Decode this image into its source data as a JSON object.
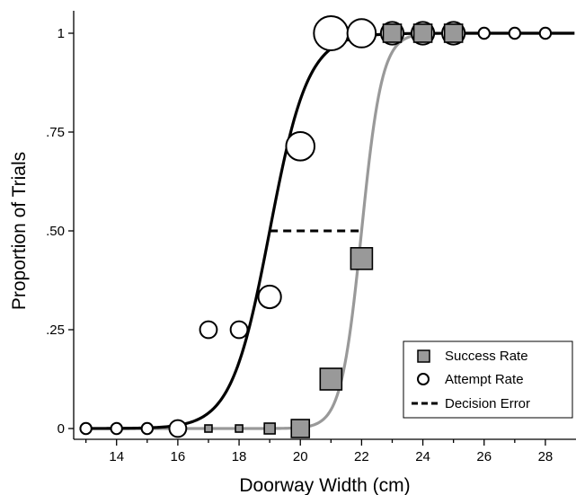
{
  "chart_data": {
    "type": "scatter",
    "xlabel": "Doorway Width (cm)",
    "ylabel": "Proportion of Trials",
    "xlim": [
      12.6,
      29
    ],
    "ylim": [
      0,
      1
    ],
    "x_ticks": [
      14,
      16,
      18,
      20,
      22,
      24,
      26,
      28
    ],
    "x_tick_labels": [
      "14",
      "16",
      "18",
      "20",
      "22",
      "24",
      "26",
      "28"
    ],
    "y_ticks": [
      0,
      0.25,
      0.5,
      0.75,
      1
    ],
    "y_tick_labels": [
      "0",
      ".25",
      ".50",
      ".75",
      "1"
    ],
    "grid": false,
    "legend_position": "bottom-right",
    "series": [
      {
        "name": "Success Rate",
        "marker": "square",
        "fill": "#999999",
        "stroke": "#000000",
        "points": [
          {
            "x": 17,
            "y": 0,
            "n": 1
          },
          {
            "x": 18,
            "y": 0,
            "n": 1
          },
          {
            "x": 19,
            "y": 0,
            "n": 2
          },
          {
            "x": 20,
            "y": 0,
            "n": 4
          },
          {
            "x": 21,
            "y": 0.125,
            "n": 5
          },
          {
            "x": 22,
            "y": 0.43,
            "n": 5
          },
          {
            "x": 23,
            "y": 1,
            "n": 4
          },
          {
            "x": 24,
            "y": 1,
            "n": 4
          },
          {
            "x": 25,
            "y": 1,
            "n": 4
          }
        ],
        "fit": {
          "midpoint": 22.0,
          "slope": 3.0,
          "color": "#999999"
        }
      },
      {
        "name": "Attempt Rate",
        "marker": "circle",
        "fill": "#ffffff",
        "stroke": "#000000",
        "points": [
          {
            "x": 13,
            "y": 0,
            "n": 1
          },
          {
            "x": 14,
            "y": 0,
            "n": 1
          },
          {
            "x": 15,
            "y": 0,
            "n": 1
          },
          {
            "x": 16,
            "y": 0,
            "n": 2
          },
          {
            "x": 17,
            "y": 0.25,
            "n": 2
          },
          {
            "x": 18,
            "y": 0.25,
            "n": 2
          },
          {
            "x": 19,
            "y": 0.333,
            "n": 3
          },
          {
            "x": 20,
            "y": 0.714,
            "n": 4
          },
          {
            "x": 21,
            "y": 1,
            "n": 5
          },
          {
            "x": 22,
            "y": 1,
            "n": 4
          },
          {
            "x": 23,
            "y": 1,
            "n": 3
          },
          {
            "x": 24,
            "y": 1,
            "n": 3
          },
          {
            "x": 25,
            "y": 1,
            "n": 3
          },
          {
            "x": 26,
            "y": 1,
            "n": 1
          },
          {
            "x": 27,
            "y": 1,
            "n": 1
          },
          {
            "x": 28,
            "y": 1,
            "n": 1
          }
        ],
        "fit": {
          "midpoint": 19.0,
          "slope": 1.6,
          "color": "#000000"
        }
      },
      {
        "name": "Decision Error",
        "type": "segment",
        "style": "dashed",
        "color": "#000000",
        "x": [
          19,
          22
        ],
        "y": [
          0.5,
          0.5
        ]
      }
    ]
  }
}
